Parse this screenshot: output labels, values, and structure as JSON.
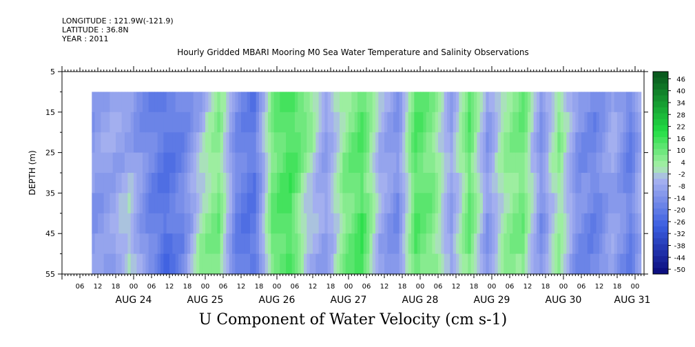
{
  "header": {
    "longitude": "LONGITUDE : 121.9W(-121.9)",
    "latitude": "LATITUDE : 36.8N",
    "year": "YEAR : 2011"
  },
  "chart_data": {
    "type": "heatmap",
    "title": "Hourly Gridded MBARI Mooring M0 Sea Water Temperature and Salinity Observations",
    "xlabel": "U Component of Water Velocity (cm s-1)",
    "ylabel": "DEPTH (m)",
    "ylim": [
      55,
      5
    ],
    "y_ticks": [
      5,
      15,
      25,
      35,
      45,
      55
    ],
    "x_range": [
      "2011-08-23 00:00",
      "2011-08-31 03:00"
    ],
    "data_time_range": [
      "2011-08-23 10:00",
      "2011-08-31 02:00"
    ],
    "data_depth_range": [
      10,
      55
    ],
    "x_hour_labels": [
      "06",
      "12",
      "18",
      "00",
      "06",
      "12",
      "18",
      "00",
      "06",
      "12",
      "18",
      "00",
      "06",
      "12",
      "18",
      "00",
      "06",
      "12",
      "18",
      "00",
      "06",
      "12",
      "18",
      "00",
      "06",
      "12",
      "18",
      "00",
      "06",
      "12",
      "18",
      "00"
    ],
    "x_day_labels": [
      "AUG 24",
      "AUG 25",
      "AUG 26",
      "AUG 27",
      "AUG 28",
      "AUG 29",
      "AUG 30",
      "AUG 31"
    ],
    "colorbar": {
      "labels": [
        "46",
        "40",
        "34",
        "28",
        "22",
        "16",
        "10",
        "4",
        "-2",
        "-8",
        "-14",
        "-20",
        "-26",
        "-32",
        "-38",
        "-44",
        "-50"
      ],
      "min": -50,
      "max": 50,
      "step": 3,
      "colors": {
        "strong_negative": "#0a0a7a",
        "mid_negative": "#3a5ee0",
        "weak_negative": "#aab4f0",
        "weak_positive": "#a8f0a8",
        "mid_positive": "#22dd44",
        "strong_positive": "#0a5a1e"
      }
    },
    "velocity_timeseries": {
      "hours_from_aug23_10": [
        0,
        6,
        12,
        18,
        24,
        30,
        36,
        42,
        48,
        54,
        60,
        66,
        72,
        78,
        84,
        90,
        96,
        102,
        108,
        114,
        120,
        126,
        132,
        138,
        144,
        150,
        156,
        162,
        168,
        174,
        180,
        186,
        192
      ],
      "surface_u": [
        -8,
        -6,
        -10,
        -14,
        -18,
        -16,
        -6,
        8,
        -12,
        -18,
        10,
        18,
        12,
        -8,
        6,
        14,
        -2,
        -10,
        16,
        8,
        -6,
        14,
        -8,
        6,
        12,
        -10,
        8,
        -10,
        -14,
        -4,
        -16,
        6,
        -8
      ],
      "bottom_u": [
        -10,
        -8,
        4,
        -12,
        -22,
        -14,
        8,
        12,
        -18,
        -20,
        12,
        16,
        -6,
        -8,
        10,
        18,
        -6,
        -14,
        14,
        10,
        -8,
        12,
        -10,
        6,
        10,
        -12,
        6,
        -12,
        -16,
        -8,
        -16,
        4,
        -10
      ]
    }
  }
}
